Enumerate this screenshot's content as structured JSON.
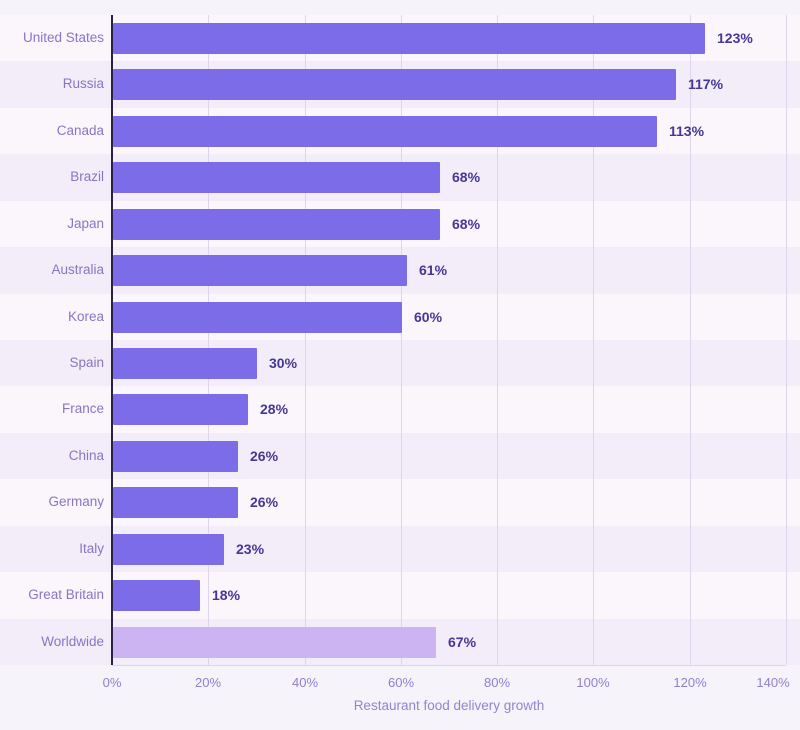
{
  "chart_data": {
    "type": "bar",
    "orientation": "horizontal",
    "title": "",
    "xlabel": "Restaurant food delivery growth",
    "ylabel": "",
    "categories": [
      "United States",
      "Russia",
      "Canada",
      "Brazil",
      "Japan",
      "Australia",
      "Korea",
      "Spain",
      "France",
      "China",
      "Germany",
      "Italy",
      "Great Britain",
      "Worldwide"
    ],
    "values": [
      123,
      117,
      113,
      68,
      68,
      61,
      60,
      30,
      28,
      26,
      26,
      23,
      18,
      67
    ],
    "value_labels": [
      "123%",
      "117%",
      "113%",
      "68%",
      "68%",
      "61%",
      "60%",
      "30%",
      "28%",
      "26%",
      "26%",
      "23%",
      "18%",
      "67%"
    ],
    "xlim": [
      0,
      140
    ],
    "x_tick_values": [
      0,
      20,
      40,
      60,
      80,
      100,
      120,
      140
    ],
    "x_tick_labels": [
      "0%",
      "20%",
      "40%",
      "60%",
      "80%",
      "100%",
      "120%",
      "140%"
    ],
    "grid": "vertical-only",
    "legend": "none",
    "highlight_category": "Worldwide",
    "colors": {
      "bar": "#7d6ce8",
      "highlight_bar": "#ccb3f2",
      "background": "#f7f3fa",
      "row_band_even": "#faf6fc",
      "row_band_odd": "#f2edf8",
      "gridline": "#ded5eb",
      "axis_line": "#2b2142",
      "baseline": "#ddd3ea",
      "category_label": "#8677c4",
      "value_label": "#463796",
      "tick_label": "#9180ce",
      "axis_title": "#9583cf"
    }
  }
}
